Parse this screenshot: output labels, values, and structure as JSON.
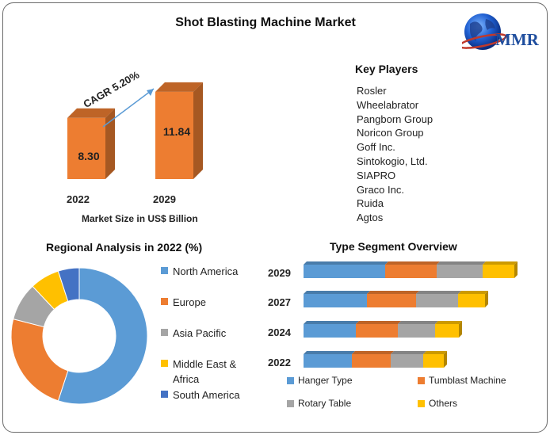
{
  "title": "Shot Blasting Machine Market",
  "logo": {
    "text": "MMR",
    "icon": "globe-icon"
  },
  "chart_data": [
    {
      "type": "bar",
      "categories": [
        "2022",
        "2029"
      ],
      "values": [
        8.3,
        11.84
      ],
      "value_labels": [
        "8.30",
        "11.84"
      ],
      "annotation": "CAGR 5.20%",
      "xlabel": "Market Size in US$ Billion",
      "color": "#ed7d31"
    },
    {
      "type": "pie",
      "donut": true,
      "title": "Regional Analysis in 2022 (%)",
      "labels": [
        "North America",
        "Europe",
        "Asia Pacific",
        "Middle East & Africa",
        "South America"
      ],
      "label_lines": [
        [
          "North America"
        ],
        [
          "Europe"
        ],
        [
          "Asia Pacific"
        ],
        [
          "Middle East &",
          "Africa"
        ],
        [
          "South America"
        ]
      ],
      "values": [
        55,
        24,
        9,
        7,
        5
      ],
      "colors": [
        "#5b9bd5",
        "#ed7d31",
        "#a5a5a5",
        "#ffc000",
        "#4472c4"
      ]
    },
    {
      "type": "bar",
      "stacked": true,
      "orientation": "horizontal",
      "title": "Type Segment Overview",
      "categories": [
        "2029",
        "2027",
        "2024",
        "2022"
      ],
      "series": [
        {
          "name": "Hanger Type",
          "values": [
            103,
            80,
            66,
            61
          ],
          "color": "#5b9bd5"
        },
        {
          "name": "Tumblast Machine",
          "values": [
            65,
            62,
            53,
            49
          ],
          "color": "#ed7d31"
        },
        {
          "name": "Rotary Table",
          "values": [
            58,
            53,
            47,
            41
          ],
          "color": "#a5a5a5"
        },
        {
          "name": "Others",
          "values": [
            40,
            34,
            30,
            26
          ],
          "color": "#ffc000"
        }
      ]
    }
  ],
  "key_players": {
    "title": "Key Players",
    "items": [
      "Rosler",
      "Wheelabrator",
      "Pangborn Group",
      "Noricon Group",
      "Goff Inc.",
      "Sintokogio, Ltd.",
      "SIAPRO",
      "Graco Inc.",
      "Ruida",
      "Agtos"
    ]
  }
}
